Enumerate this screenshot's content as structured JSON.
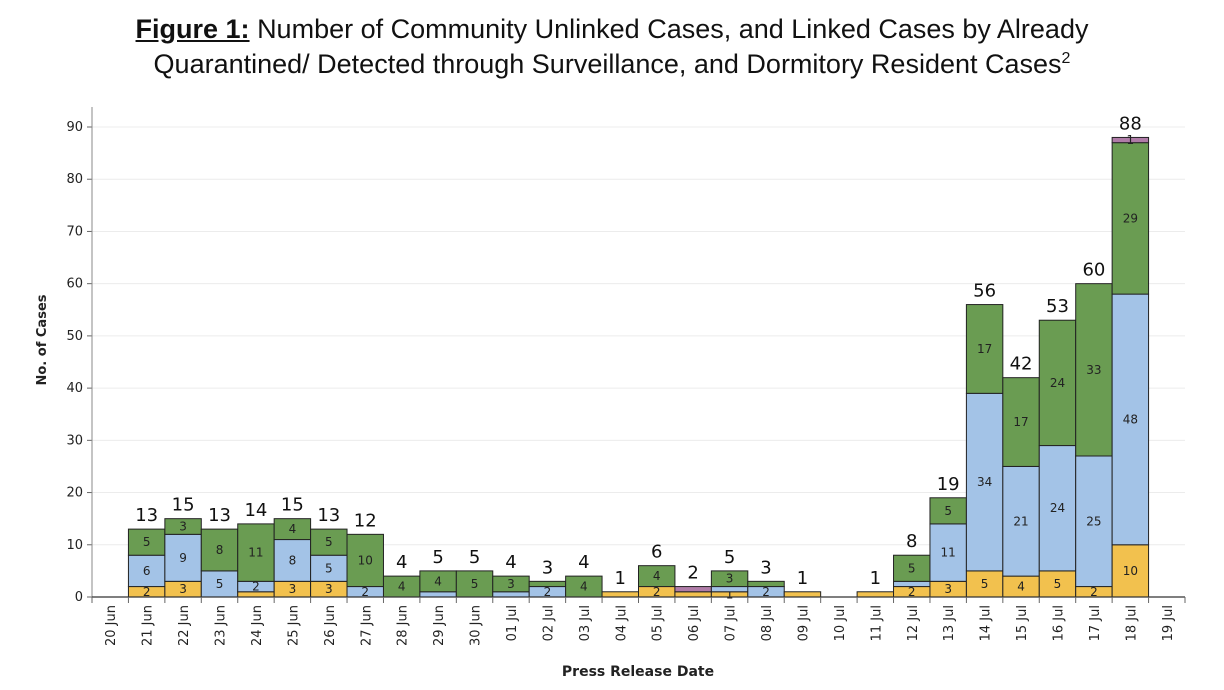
{
  "figure": {
    "label": "Figure 1:",
    "title_line1": "Number of Community Unlinked Cases, and Linked Cases by Already",
    "title_line2": "Quarantined/ Detected through Surveillance, and Dormitory Resident Cases",
    "superscript": "2"
  },
  "chart_data": {
    "type": "bar",
    "stacked": true,
    "title": "Number of Community Unlinked Cases, and Linked Cases by Already Quarantined/ Detected through Surveillance, and Dormitory Resident Cases",
    "xlabel": "Press Release Date",
    "ylabel": "No. of Cases",
    "ylim": [
      0,
      90
    ],
    "yticks": [
      0,
      10,
      20,
      30,
      40,
      50,
      60,
      70,
      80,
      90
    ],
    "grid": true,
    "colors": [
      "#f2c14e",
      "#a3c3e7",
      "#6a9c52",
      "#b07ca8"
    ],
    "categories": [
      "20 Jun",
      "21 Jun",
      "22 Jun",
      "23 Jun",
      "24 Jun",
      "25 Jun",
      "26 Jun",
      "27 Jun",
      "28 Jun",
      "29 Jun",
      "30 Jun",
      "01 Jul",
      "02 Jul",
      "03 Jul",
      "04 Jul",
      "05 Jul",
      "06 Jul",
      "07 Jul",
      "08 Jul",
      "09 Jul",
      "10 Jul",
      "11 Jul",
      "12 Jul",
      "13 Jul",
      "14 Jul",
      "15 Jul",
      "16 Jul",
      "17 Jul",
      "18 Jul",
      "19 Jul"
    ],
    "series": [
      {
        "values": [
          0,
          2,
          3,
          0,
          1,
          3,
          3,
          0,
          0,
          0,
          0,
          0,
          0,
          0,
          1,
          2,
          1,
          1,
          0,
          1,
          0,
          1,
          2,
          3,
          5,
          4,
          5,
          2,
          10,
          0
        ],
        "labels": [
          "",
          "2",
          "3",
          "",
          "",
          "3",
          "3",
          "",
          "",
          "",
          "",
          "",
          "",
          "",
          "",
          "2",
          "",
          "1",
          "",
          "",
          "",
          "",
          "2",
          "3",
          "5",
          "4",
          "5",
          "2",
          "10",
          ""
        ]
      },
      {
        "values": [
          0,
          6,
          9,
          5,
          2,
          8,
          5,
          2,
          0,
          1,
          0,
          1,
          2,
          0,
          0,
          0,
          0,
          1,
          2,
          0,
          0,
          0,
          1,
          11,
          34,
          21,
          24,
          25,
          48,
          0
        ],
        "labels": [
          "",
          "6",
          "9",
          "5",
          "2",
          "8",
          "5",
          "2",
          "",
          "",
          "",
          "",
          "2",
          "",
          "",
          "",
          "",
          "",
          "2",
          "",
          "",
          "",
          "",
          "11",
          "34",
          "21",
          "24",
          "25",
          "48",
          ""
        ]
      },
      {
        "values": [
          0,
          5,
          3,
          8,
          11,
          4,
          5,
          10,
          4,
          4,
          5,
          3,
          1,
          4,
          0,
          4,
          0,
          3,
          1,
          0,
          0,
          0,
          5,
          5,
          17,
          17,
          24,
          33,
          29,
          0
        ],
        "labels": [
          "",
          "5",
          "3",
          "8",
          "11",
          "4",
          "5",
          "10",
          "4",
          "4",
          "5",
          "3",
          "",
          "4",
          "",
          "4",
          "",
          "3",
          "",
          "",
          "",
          "",
          "5",
          "5",
          "17",
          "17",
          "24",
          "33",
          "29",
          ""
        ]
      },
      {
        "values": [
          0,
          0,
          0,
          0,
          0,
          0,
          0,
          0,
          0,
          0,
          0,
          0,
          0,
          0,
          0,
          0,
          1,
          0,
          0,
          0,
          0,
          0,
          0,
          0,
          0,
          0,
          0,
          0,
          1,
          0
        ],
        "labels": [
          "",
          "",
          "",
          "",
          "",
          "",
          "",
          "",
          "",
          "",
          "",
          "",
          "",
          "",
          "",
          "",
          "",
          "",
          "",
          "",
          "",
          "",
          "",
          "",
          "",
          "",
          "",
          "",
          "1",
          ""
        ]
      }
    ],
    "totals": [
      "",
      "13",
      "15",
      "13",
      "14",
      "15",
      "13",
      "12",
      "4",
      "5",
      "5",
      "4",
      "3",
      "4",
      "1",
      "6",
      "2",
      "5",
      "3",
      "1",
      "",
      "1",
      "8",
      "19",
      "56",
      "42",
      "53",
      "60",
      "88",
      ""
    ]
  }
}
